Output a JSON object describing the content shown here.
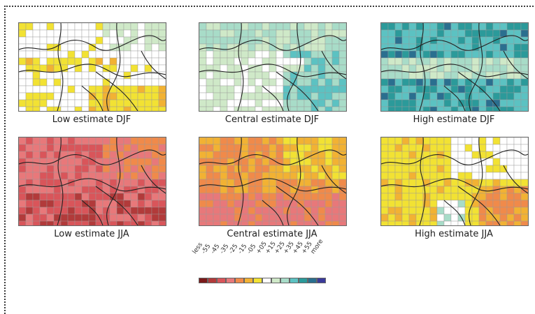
{
  "panels": [
    {
      "id": "low-djf",
      "caption": "Low estimate DJF",
      "scheme": "djf-low"
    },
    {
      "id": "central-djf",
      "caption": "Central estimate DJF",
      "scheme": "djf-central"
    },
    {
      "id": "high-djf",
      "caption": "High estimate DJF",
      "scheme": "djf-high"
    },
    {
      "id": "low-jja",
      "caption": "Low estimate JJA",
      "scheme": "jja-low"
    },
    {
      "id": "central-jja",
      "caption": "Central estimate JJA",
      "scheme": "jja-central"
    },
    {
      "id": "high-jja",
      "caption": "High estimate JJA",
      "scheme": "jja-high"
    }
  ],
  "legend": {
    "labels": [
      "less",
      "-55",
      "-45",
      "-35",
      "-25",
      "-15",
      "-05",
      "+05",
      "+15",
      "+25",
      "+35",
      "+45",
      "+55",
      "more"
    ],
    "colors": [
      "#7b1a1a",
      "#b23a3a",
      "#d9555a",
      "#e8787a",
      "#f08a4a",
      "#f2b233",
      "#f2e233",
      "#ffffff",
      "#cfe9c8",
      "#a8dcc8",
      "#5cc2c2",
      "#2b9a9a",
      "#2a6f8f",
      "#3a3a9a"
    ]
  }
}
